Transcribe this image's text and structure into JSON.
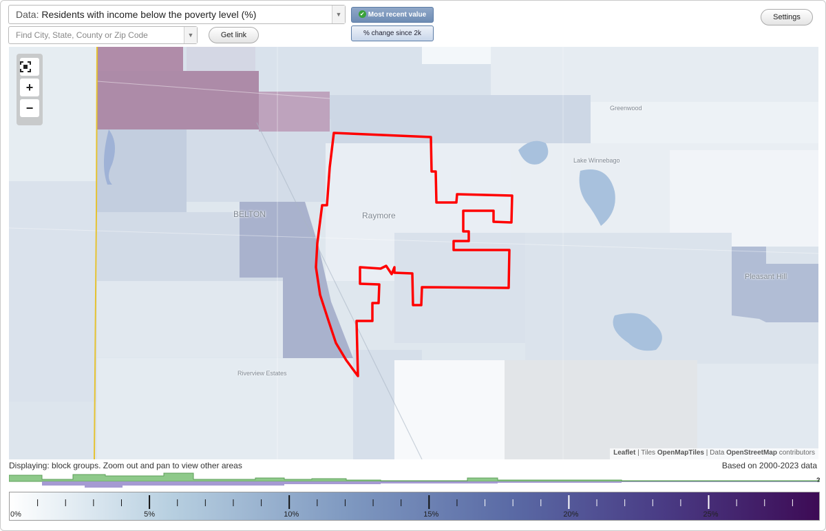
{
  "controls": {
    "data_prefix": "Data:",
    "data_value": "Residents with income below the poverty level (%)",
    "location_placeholder": "Find City, State, County or Zip Code",
    "get_link_label": "Get link",
    "most_recent_label": "Most recent value",
    "change_label": "% change since 2k",
    "settings_label": "Settings"
  },
  "map": {
    "zoom_in_symbol": "+",
    "zoom_out_symbol": "−",
    "fullscreen_icon": "fullscreen-icon",
    "place_labels": {
      "belton": "BELTON",
      "raymore": "Raymore",
      "greenwood": "Greenwood",
      "lake_winnebago": "Lake Winnebago",
      "pleasant_hill": "Pleasant Hill",
      "riverview_estates": "Riverview Estates"
    },
    "highlight_color": "#ff0000",
    "attribution": {
      "leaflet": "Leaflet",
      "sep1": " | Tiles ",
      "tiles": "OpenMapTiles",
      "sep2": " | Data ",
      "data_source": "OpenStreetMap",
      "contributors": " contributors"
    }
  },
  "status": {
    "displaying": "Displaying: block groups. Zoom out and pan to view other areas",
    "data_years": "Based on 2000-2023 data"
  },
  "histogram": {
    "unknown_marker": "?",
    "present_color": "#8ec98a",
    "past_color": "#a59ad2"
  },
  "legend": {
    "scale_range": [
      0,
      29
    ],
    "ticks": [
      "0%",
      "5%",
      "10%",
      "15%",
      "20%",
      "25%"
    ],
    "colors": [
      "#ffffff",
      "#b7cfe0",
      "#7e98c0",
      "#5a6aa5",
      "#4a3d86",
      "#3d0b55"
    ]
  }
}
